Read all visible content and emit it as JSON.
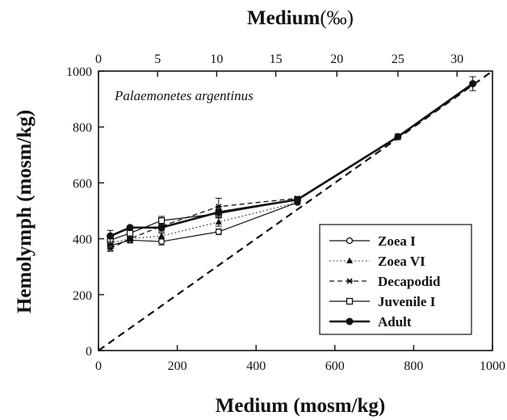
{
  "chart_data": {
    "type": "line",
    "annotation": "Palaemonetes argentinus",
    "x_top_label_main": "Medium",
    "x_top_label_unit": "(‰)",
    "xlabel": "Medium (mosm/kg)",
    "ylabel": "Hemolymph (mosm/kg)",
    "xlim": [
      0,
      1000
    ],
    "ylim": [
      0,
      1000
    ],
    "x_ticks": [
      "0",
      "200",
      "400",
      "600",
      "800",
      "1000"
    ],
    "y_ticks": [
      "0",
      "200",
      "400",
      "600",
      "800",
      "1000"
    ],
    "top_ticks": [
      {
        "label": "0",
        "x": 0
      },
      {
        "label": "5",
        "x": 150
      },
      {
        "label": "10",
        "x": 300
      },
      {
        "label": "15",
        "x": 450
      },
      {
        "label": "20",
        "x": 605
      },
      {
        "label": "25",
        "x": 760
      },
      {
        "label": "30",
        "x": 910
      }
    ],
    "isosmotic_line": {
      "x": [
        0,
        1000
      ],
      "y": [
        0,
        1000
      ],
      "style": "dashed"
    },
    "legend_position": "lower-right",
    "series": [
      {
        "name": "Zoea I",
        "marker": "open-circle",
        "line": "solid-thin",
        "x": [
          30,
          80,
          160,
          305,
          505
        ],
        "y": [
          375,
          395,
          390,
          425,
          530
        ],
        "err": [
          10,
          10,
          12,
          10,
          0
        ]
      },
      {
        "name": "Zoea VI",
        "marker": "filled-triangle",
        "line": "dotted",
        "x": [
          30,
          80,
          160,
          305,
          505
        ],
        "y": [
          385,
          400,
          410,
          460,
          530
        ],
        "err": [
          10,
          10,
          10,
          15,
          0
        ]
      },
      {
        "name": "Decapodid",
        "marker": "star",
        "line": "dashed",
        "x": [
          30,
          80,
          160,
          305,
          505
        ],
        "y": [
          365,
          400,
          445,
          515,
          545
        ],
        "err": [
          10,
          10,
          15,
          30,
          0
        ]
      },
      {
        "name": "Juvenile I",
        "marker": "open-square",
        "line": "solid-thin",
        "x": [
          30,
          80,
          160,
          305,
          505
        ],
        "y": [
          395,
          420,
          465,
          490,
          540
        ],
        "err": [
          15,
          15,
          15,
          15,
          0
        ]
      },
      {
        "name": "Adult",
        "marker": "filled-circle",
        "line": "solid-thick",
        "x": [
          30,
          80,
          160,
          305,
          505,
          760,
          950
        ],
        "y": [
          410,
          440,
          440,
          495,
          540,
          765,
          955
        ],
        "err": [
          20,
          0,
          15,
          20,
          0,
          10,
          25
        ]
      }
    ]
  }
}
